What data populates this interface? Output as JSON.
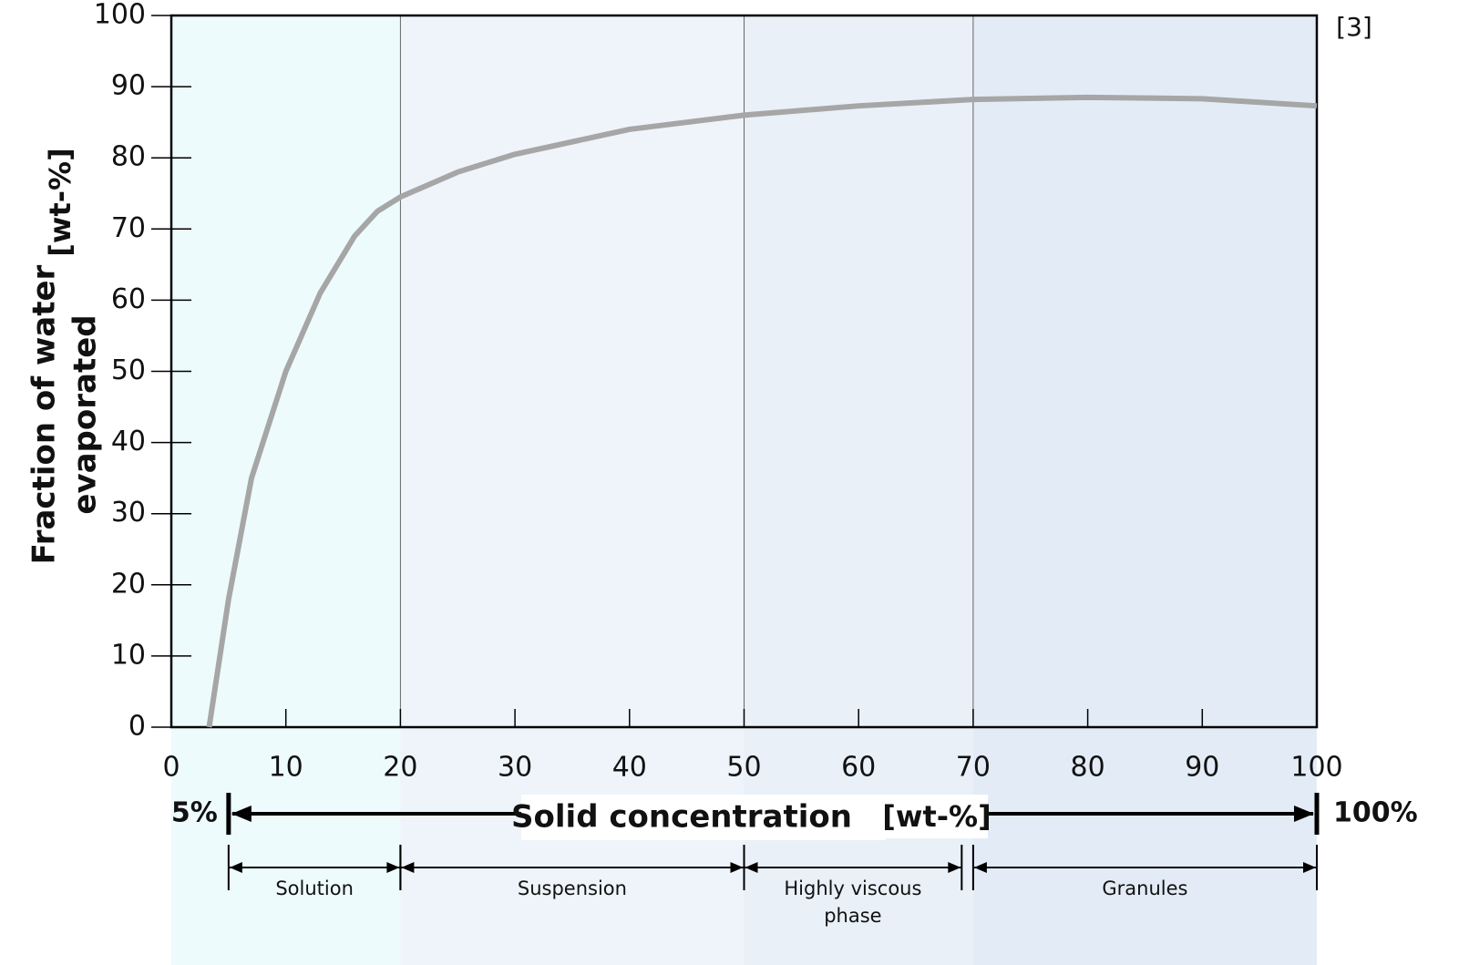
{
  "chart_data": {
    "type": "line",
    "note": "[3]",
    "ylabel_lines": [
      "Fraction of water",
      "evaporated"
    ],
    "yunit": "[wt-%]",
    "xlabel": "Solid concentration",
    "xunit": "[wt-%]",
    "range_labels": [
      {
        "value": 5,
        "label": "5%"
      },
      {
        "value": 100,
        "label": "100%"
      }
    ],
    "x": [
      3.3,
      5,
      7,
      10,
      13,
      16,
      18,
      20,
      25,
      30,
      40,
      50,
      60,
      70,
      80,
      90,
      100
    ],
    "series": [
      {
        "color": "#a6a6a6",
        "values": [
          0,
          18,
          35,
          50,
          61,
          69,
          72.5,
          74.5,
          78,
          80.5,
          84,
          86,
          87.3,
          88.2,
          88.5,
          88.3,
          87.3
        ]
      }
    ],
    "phases": [
      {
        "label": "Solution",
        "from": 5,
        "to": 20,
        "color": "#eefbfc"
      },
      {
        "label": "Suspension",
        "from": 20,
        "to": 50,
        "color": "#eff4fa"
      },
      {
        "label": "Highly viscous phase",
        "from": 50,
        "to": 69,
        "color": "#e9f0f8"
      },
      {
        "label": "Granules",
        "from": 70,
        "to": 100,
        "color": "#e3ecf6"
      }
    ],
    "xlim": [
      0,
      100
    ],
    "xticks": [
      0,
      10,
      20,
      30,
      40,
      50,
      60,
      70,
      80,
      90,
      100
    ],
    "ylim": [
      0,
      100
    ],
    "yticks": [
      0,
      10,
      20,
      30,
      40,
      50,
      60,
      70,
      80,
      90,
      100
    ]
  }
}
